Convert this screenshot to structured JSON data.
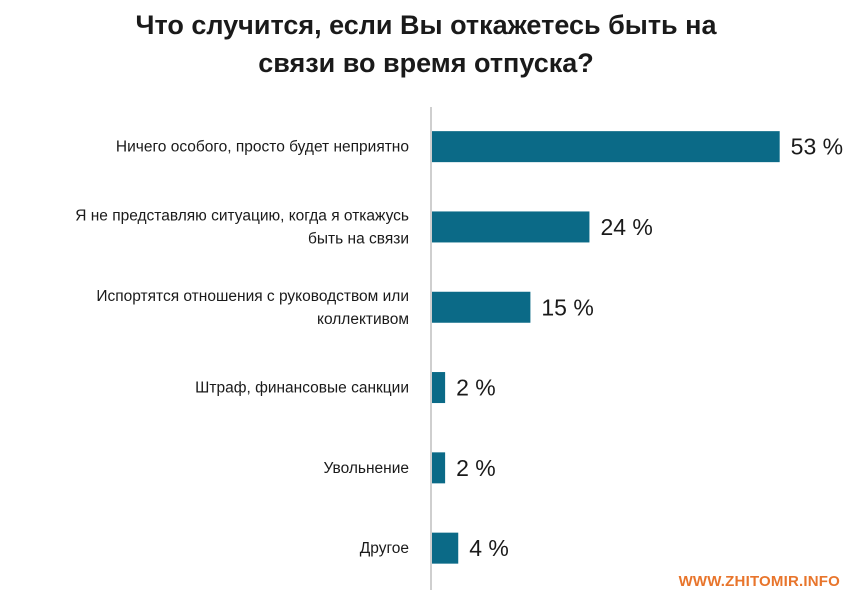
{
  "title_lines": [
    "Что случится, если Вы откажетесь быть на",
    "связи во время отпуска?"
  ],
  "watermark": "WWW.ZHITOMIR.INFO",
  "colors": {
    "bar": "#0b6a87",
    "axis": "#bfbfbf",
    "watermark": "#e8752c"
  },
  "chart_data": {
    "type": "bar",
    "orientation": "horizontal",
    "title": "Что случится, если Вы откажетесь быть на связи во время отпуска?",
    "categories": [
      [
        "Ничего особого, просто будет неприятно"
      ],
      [
        "Я не представляю ситуацию, когда я откажусь",
        "быть на связи"
      ],
      [
        "Испортятся отношения с руководством или",
        "коллективом"
      ],
      [
        "Штраф, финансовые санкции"
      ],
      [
        "Увольнение"
      ],
      [
        "Другое"
      ]
    ],
    "values": [
      53,
      24,
      15,
      2,
      2,
      4
    ],
    "value_labels": [
      "53 %",
      "24 %",
      "15 %",
      "2 %",
      "2 %",
      "4 %"
    ],
    "unit": "%",
    "grid": false
  }
}
